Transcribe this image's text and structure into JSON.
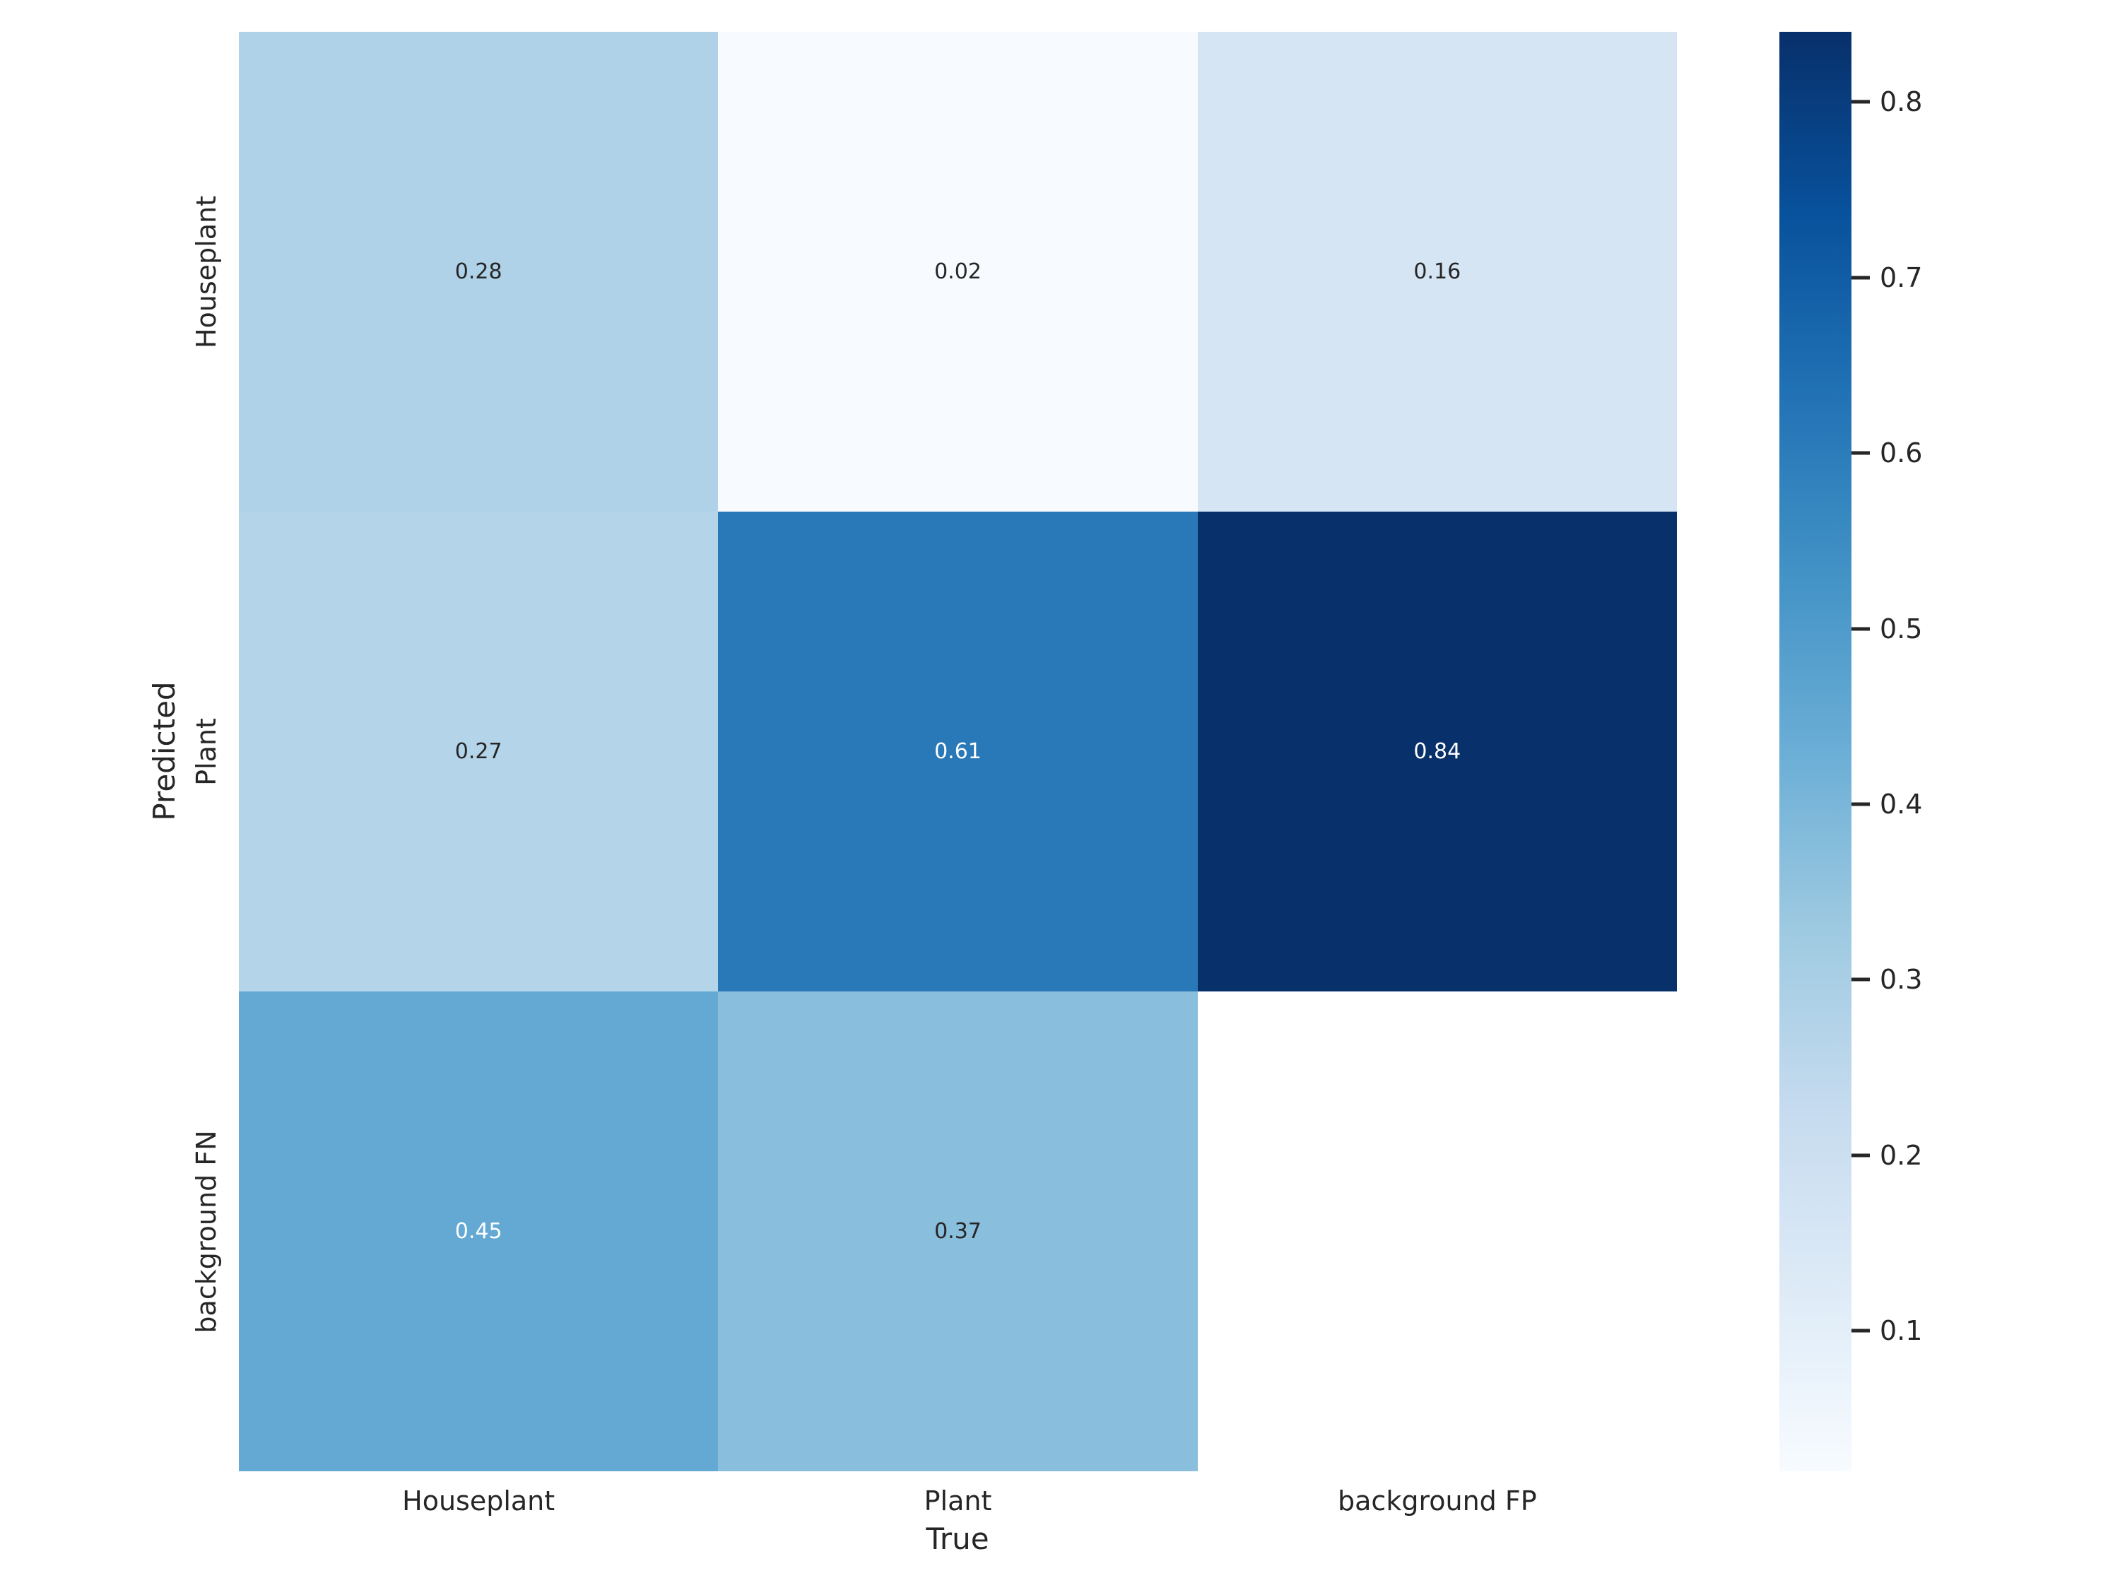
{
  "figure": {
    "background": "#ffffff"
  },
  "chart_data": {
    "type": "heatmap",
    "title": "",
    "xlabel": "True",
    "ylabel": "Predicted",
    "x_categories": [
      "Houseplant",
      "Plant",
      "background FP"
    ],
    "y_categories": [
      "Houseplant",
      "Plant",
      "background FN"
    ],
    "values": [
      [
        0.28,
        0.02,
        0.16
      ],
      [
        0.27,
        0.61,
        0.84
      ],
      [
        0.45,
        0.37,
        null
      ]
    ],
    "cell_colors": [
      [
        "#b0d2e8",
        "#f7fbff",
        "#d5e5f4"
      ],
      [
        "#b4d4e9",
        "#2979b9",
        "#08306b"
      ],
      [
        "#63a9d3",
        "#89bedc",
        "#ffffff"
      ]
    ],
    "annot_text_colors": [
      [
        "#262626",
        "#262626",
        "#262626"
      ],
      [
        "#262626",
        "#ffffff",
        "#ffffff"
      ],
      [
        "#ffffff",
        "#262626",
        null
      ]
    ],
    "value_format_decimals": 2,
    "vmin": 0.02,
    "vmax": 0.84,
    "colorbar": {
      "ticks": [
        0.8,
        0.7,
        0.6,
        0.5,
        0.4,
        0.3,
        0.2,
        0.1
      ],
      "tick_format_decimals": 1,
      "position": "right",
      "colormap_name": "Blues",
      "colormap_stops": [
        "#f7fbff",
        "#deebf7",
        "#c6dbef",
        "#9ecae1",
        "#6baed6",
        "#4292c6",
        "#2171b5",
        "#08519c",
        "#08306b"
      ]
    },
    "grid": false,
    "legend": false
  }
}
